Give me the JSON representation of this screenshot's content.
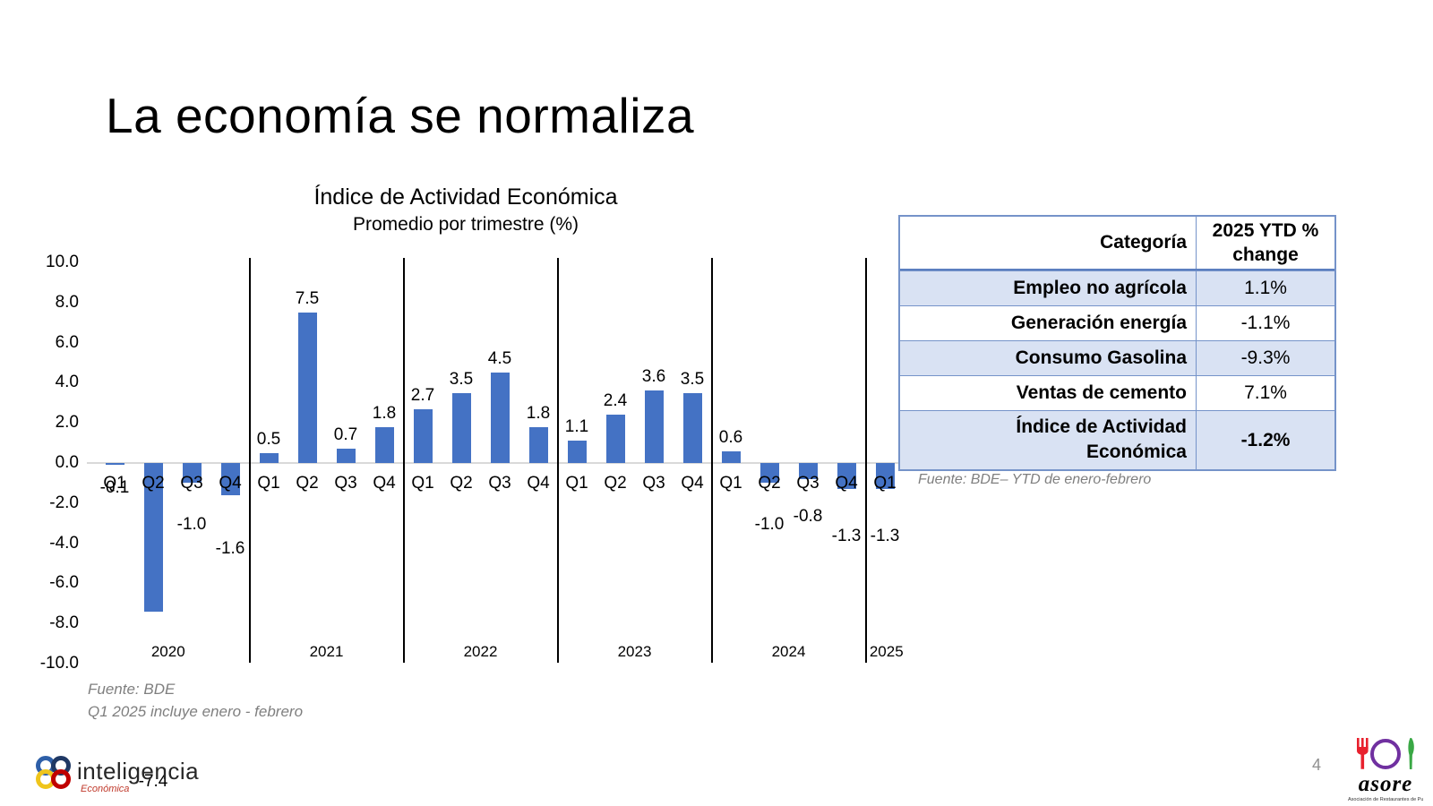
{
  "slide": {
    "title": "La economía se normaliza",
    "page_number": "4"
  },
  "chart_data": {
    "type": "bar",
    "title": "Índice de Actividad Económica",
    "subtitle": "Promedio por trimestre (%)",
    "ylabel": "",
    "xlabel": "",
    "ylim": [
      -10,
      10
    ],
    "ytick_step": 2,
    "grid": "zero-line-only",
    "bar_color": "#4472C4",
    "year_separator_color": "#000000",
    "years": [
      {
        "label": "2020",
        "quarters": [
          "Q1",
          "Q2",
          "Q3",
          "Q4"
        ],
        "values": [
          -0.1,
          -7.4,
          -1.0,
          -1.6
        ]
      },
      {
        "label": "2021",
        "quarters": [
          "Q1",
          "Q2",
          "Q3",
          "Q4"
        ],
        "values": [
          0.5,
          7.5,
          0.7,
          1.8
        ]
      },
      {
        "label": "2022",
        "quarters": [
          "Q1",
          "Q2",
          "Q3",
          "Q4"
        ],
        "values": [
          2.7,
          3.5,
          4.5,
          1.8
        ]
      },
      {
        "label": "2023",
        "quarters": [
          "Q1",
          "Q2",
          "Q3",
          "Q4"
        ],
        "values": [
          1.1,
          2.4,
          3.6,
          3.5
        ]
      },
      {
        "label": "2024",
        "quarters": [
          "Q1",
          "Q2",
          "Q3",
          "Q4"
        ],
        "values": [
          0.6,
          -1.0,
          -0.8,
          -1.3
        ]
      },
      {
        "label": "2025",
        "quarters": [
          "Q1"
        ],
        "values": [
          -1.3
        ]
      }
    ],
    "source_lines": [
      "Fuente: BDE",
      "Q1 2025 incluye enero - febrero"
    ]
  },
  "table": {
    "header": {
      "category": "Categoría",
      "value": "2025 YTD % change"
    },
    "rows": [
      {
        "category": "Empleo no agrícola",
        "value": "1.1%",
        "shaded": true,
        "bold_value": false
      },
      {
        "category": "Generación energía",
        "value": "-1.1%",
        "shaded": false,
        "bold_value": false
      },
      {
        "category": "Consumo Gasolina",
        "value": "-9.3%",
        "shaded": true,
        "bold_value": false
      },
      {
        "category": "Ventas de cemento",
        "value": "7.1%",
        "shaded": false,
        "bold_value": false
      },
      {
        "category": "Índice de Actividad Económica",
        "value": "-1.2%",
        "shaded": true,
        "bold_value": true
      }
    ],
    "caption": "Fuente: BDE– YTD de enero-febrero"
  },
  "branding": {
    "left_logo": {
      "name": "inteligencia",
      "subtext": "Económica"
    },
    "right_logo": {
      "name": "asore",
      "tagline": "Asociación de Restaurantes de Puerto Rico"
    }
  }
}
